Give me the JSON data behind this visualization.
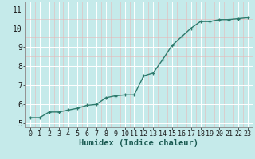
{
  "x": [
    0,
    1,
    2,
    3,
    4,
    5,
    6,
    7,
    8,
    9,
    10,
    11,
    12,
    13,
    14,
    15,
    16,
    17,
    18,
    19,
    20,
    21,
    22,
    23
  ],
  "y": [
    5.3,
    5.3,
    5.6,
    5.6,
    5.7,
    5.8,
    5.95,
    6.0,
    6.35,
    6.45,
    6.5,
    6.5,
    7.5,
    7.65,
    8.35,
    9.1,
    9.55,
    10.0,
    10.35,
    10.35,
    10.45,
    10.45,
    10.5,
    10.55
  ],
  "line_color": "#2d7a6c",
  "marker": "+",
  "marker_size": 3.5,
  "line_width": 1.0,
  "bg_color": "#c5eaea",
  "grid_color": "#aad4d4",
  "grid_color_major": "#ffffff",
  "xlabel": "Humidex (Indice chaleur)",
  "xlabel_fontsize": 7.5,
  "tick_fontsize": 6.5,
  "xlim": [
    -0.5,
    23.5
  ],
  "ylim": [
    4.8,
    11.4
  ],
  "yticks": [
    5,
    6,
    7,
    8,
    9,
    10,
    11
  ],
  "xticks": [
    0,
    1,
    2,
    3,
    4,
    5,
    6,
    7,
    8,
    9,
    10,
    11,
    12,
    13,
    14,
    15,
    16,
    17,
    18,
    19,
    20,
    21,
    22,
    23
  ]
}
